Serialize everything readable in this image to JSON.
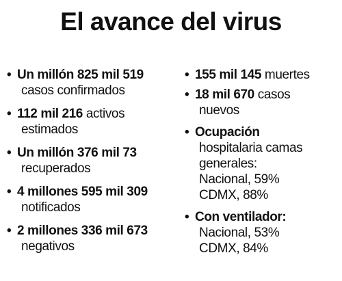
{
  "title": "El avance del virus",
  "left_items": [
    {
      "bold": "Un millón 825 mil 519",
      "rest": "",
      "sub": "casos confirmados"
    },
    {
      "bold": "112 mil 216",
      "rest": " activos",
      "sub": "estimados"
    },
    {
      "bold": "Un millón 376 mil 73",
      "rest": "",
      "sub": "recuperados"
    },
    {
      "bold": "4 millones 595 mil 309",
      "rest": "",
      "sub": "notificados"
    },
    {
      "bold": "2 millones 336 mil 673",
      "rest": "",
      "sub": "negativos"
    }
  ],
  "right_items": [
    {
      "bold": "155 mil 145",
      "rest": " muertes"
    },
    {
      "bold": "18 mil 670",
      "rest": " casos",
      "sub": "nuevos"
    },
    {
      "head1": "Ocupación",
      "head2": "hospitalaria camas",
      "head3": "generales:",
      "line1": "Nacional, 59%",
      "line2": "CDMX, 88%"
    },
    {
      "head1": "Con ventilador:",
      "line1": "Nacional, 53%",
      "line2": "CDMX, 84%"
    }
  ],
  "bullet": "•"
}
